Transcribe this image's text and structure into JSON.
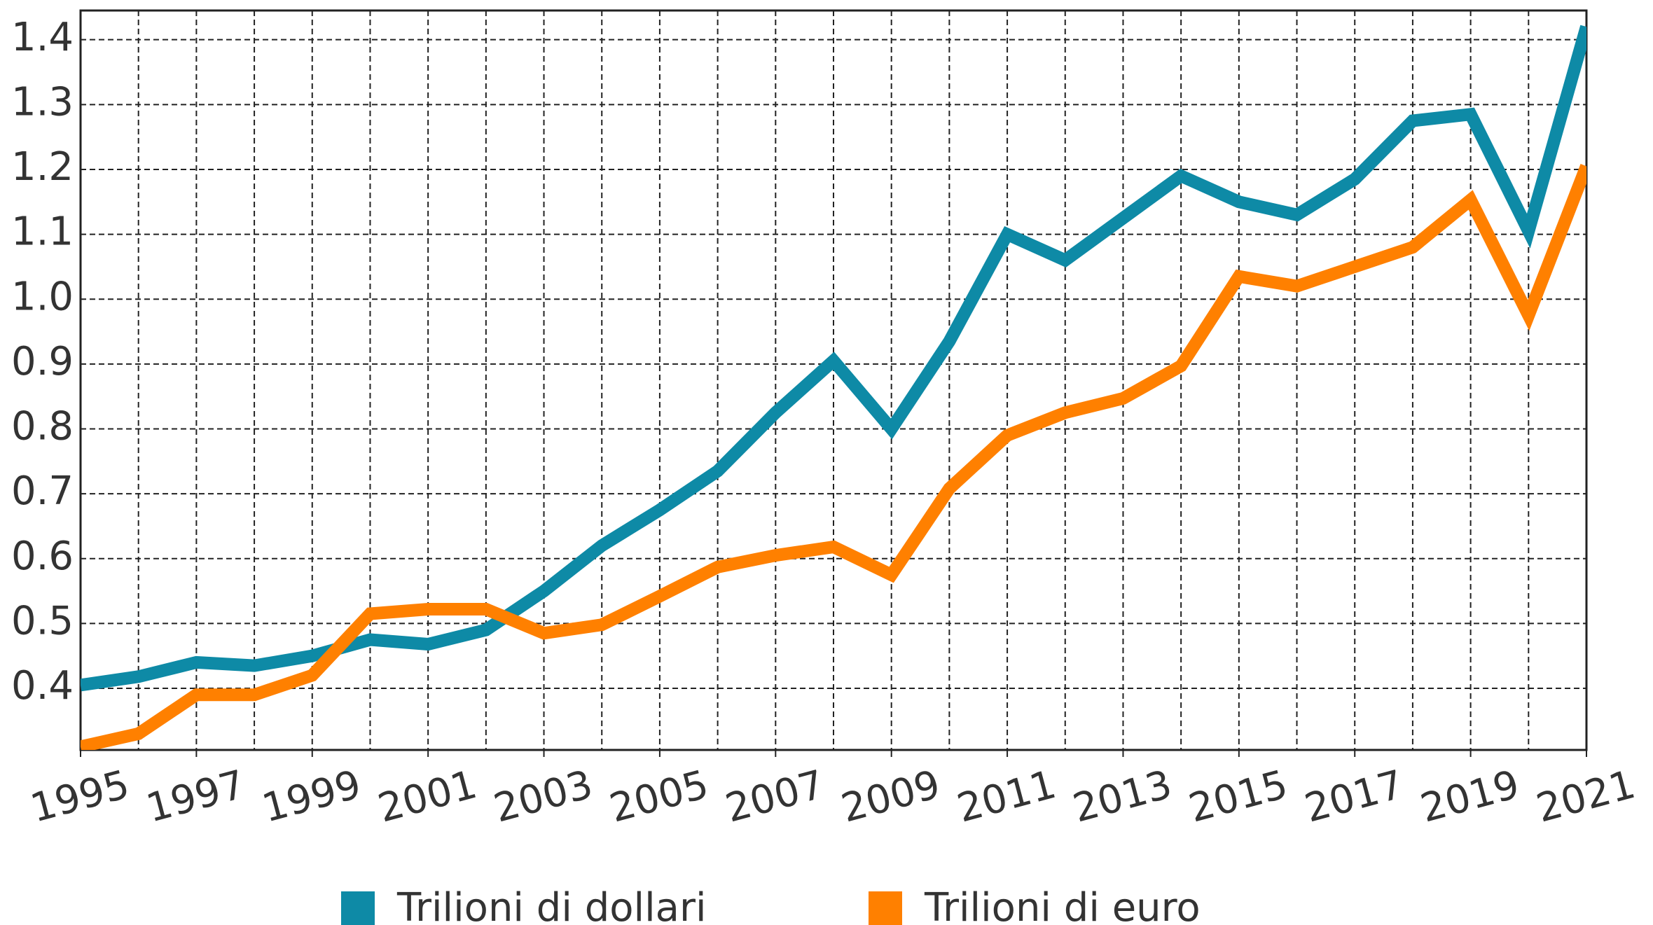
{
  "chart_data": {
    "type": "line",
    "x": [
      1995,
      1996,
      1997,
      1998,
      1999,
      2000,
      2001,
      2002,
      2003,
      2004,
      2005,
      2006,
      2007,
      2008,
      2009,
      2010,
      2011,
      2012,
      2013,
      2014,
      2015,
      2016,
      2017,
      2018,
      2019,
      2020,
      2021
    ],
    "series": [
      {
        "name": "Trilioni di dollari",
        "color": "#0e8aa6",
        "values": [
          0.405,
          0.418,
          0.44,
          0.435,
          0.45,
          0.475,
          0.468,
          0.49,
          0.55,
          0.62,
          0.675,
          0.735,
          0.825,
          0.905,
          0.8,
          0.935,
          1.1,
          1.06,
          1.125,
          1.19,
          1.15,
          1.13,
          1.185,
          1.275,
          1.285,
          1.105,
          1.42
        ]
      },
      {
        "name": "Trilioni di euro",
        "color": "#ff8000",
        "values": [
          0.31,
          0.33,
          0.39,
          0.39,
          0.42,
          0.515,
          0.522,
          0.522,
          0.485,
          0.498,
          0.542,
          0.587,
          0.605,
          0.618,
          0.575,
          0.708,
          0.79,
          0.825,
          0.847,
          0.897,
          1.035,
          1.02,
          1.05,
          1.08,
          1.153,
          0.975,
          1.205
        ]
      }
    ],
    "xlim": [
      1995,
      2021
    ],
    "xticks": [
      1995,
      1997,
      1999,
      2001,
      2003,
      2005,
      2007,
      2009,
      2011,
      2013,
      2015,
      2017,
      2019,
      2021
    ],
    "ylim": [
      0.305,
      1.445
    ],
    "yticks": [
      0.4,
      0.5,
      0.6,
      0.7,
      0.8,
      0.9,
      {
        "value": 1,
        "label": "1.0"
      },
      1.1,
      1.2,
      1.3,
      1.4
    ],
    "grid": true,
    "legend": "bottom"
  }
}
